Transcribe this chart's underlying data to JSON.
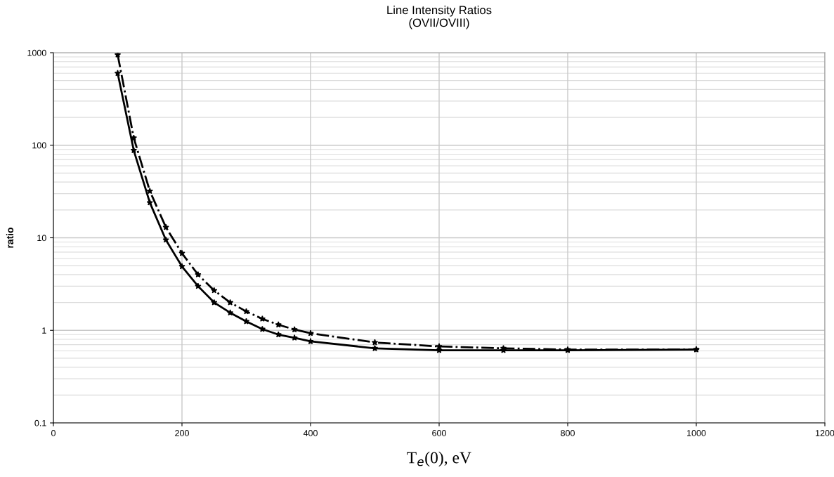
{
  "chart_data": {
    "type": "line",
    "title": "Line Intensity Ratios\n(OVII/OVIII)",
    "xlabel": "T$_{e}$(0), eV",
    "ylabel": "ratio",
    "x": [
      100,
      125,
      150,
      175,
      200,
      225,
      250,
      275,
      300,
      325,
      350,
      375,
      400,
      500,
      600,
      700,
      800,
      1000
    ],
    "series": [
      {
        "color": "#000000",
        "line_style": "solid",
        "values": [
          600,
          88,
          24,
          9.5,
          4.9,
          3.0,
          2.0,
          1.55,
          1.25,
          1.03,
          0.9,
          0.83,
          0.76,
          0.64,
          0.61,
          0.61,
          0.61,
          0.62
        ]
      },
      {
        "color": "#000000",
        "line_style": "dashdot",
        "values": [
          950,
          120,
          32,
          13,
          6.8,
          4.0,
          2.7,
          2.0,
          1.6,
          1.33,
          1.15,
          1.02,
          0.93,
          0.74,
          0.67,
          0.64,
          0.62,
          0.62
        ]
      }
    ],
    "log": "y",
    "xlim": [
      0,
      1200
    ],
    "xticks": [
      0,
      200,
      400,
      600,
      800,
      1000,
      1200
    ],
    "ylim": [
      0.1,
      1000
    ],
    "yticks": [
      0.1,
      1,
      10,
      100,
      1000
    ],
    "grid": true,
    "marker": "star"
  }
}
